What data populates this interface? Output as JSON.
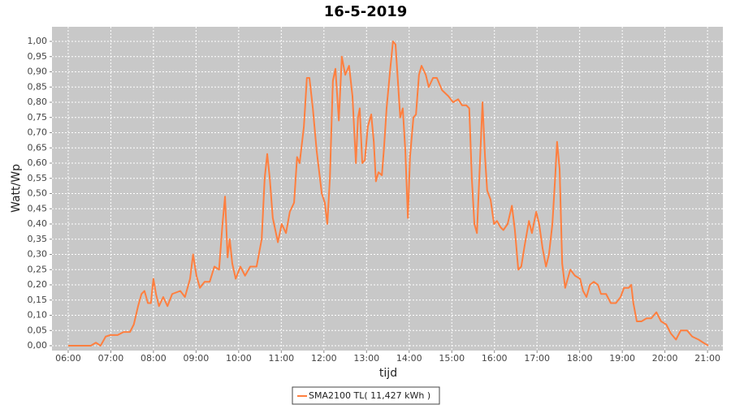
{
  "chart_data": {
    "type": "line",
    "title": "16-5-2019",
    "x_label": "tijd",
    "y_label": "Watt/Wp",
    "x": [
      6.0,
      6.53,
      6.65,
      6.76,
      6.88,
      6.99,
      7.16,
      7.3,
      7.45,
      7.54,
      7.64,
      7.72,
      7.79,
      7.87,
      7.94,
      8.0,
      8.06,
      8.13,
      8.23,
      8.33,
      8.44,
      8.63,
      8.74,
      8.86,
      8.93,
      9.01,
      9.09,
      9.2,
      9.32,
      9.43,
      9.54,
      9.62,
      9.68,
      9.74,
      9.79,
      9.85,
      9.93,
      10.04,
      10.15,
      10.27,
      10.42,
      10.54,
      10.61,
      10.67,
      10.73,
      10.8,
      10.92,
      11.01,
      11.11,
      11.2,
      11.3,
      11.37,
      11.43,
      11.53,
      11.6,
      11.66,
      11.74,
      11.83,
      11.95,
      12.02,
      12.08,
      12.14,
      12.21,
      12.27,
      12.35,
      12.42,
      12.5,
      12.59,
      12.67,
      12.75,
      12.8,
      12.84,
      12.9,
      12.96,
      13.03,
      13.11,
      13.17,
      13.22,
      13.28,
      13.36,
      13.41,
      13.47,
      13.55,
      13.62,
      13.68,
      13.74,
      13.79,
      13.85,
      13.91,
      13.97,
      14.02,
      14.1,
      14.16,
      14.23,
      14.29,
      14.39,
      14.46,
      14.56,
      14.65,
      14.77,
      14.92,
      15.03,
      15.15,
      15.24,
      15.34,
      15.41,
      15.47,
      15.53,
      15.59,
      15.66,
      15.72,
      15.78,
      15.83,
      15.91,
      15.99,
      16.06,
      16.14,
      16.21,
      16.31,
      16.41,
      16.48,
      16.56,
      16.63,
      16.71,
      16.81,
      16.88,
      16.98,
      17.05,
      17.13,
      17.21,
      17.28,
      17.36,
      17.42,
      17.47,
      17.53,
      17.59,
      17.66,
      17.78,
      17.89,
      18.01,
      18.08,
      18.16,
      18.24,
      18.33,
      18.43,
      18.5,
      18.62,
      18.73,
      18.85,
      18.96,
      19.04,
      19.15,
      19.21,
      19.26,
      19.34,
      19.45,
      19.57,
      19.68,
      19.8,
      19.91,
      20.03,
      20.14,
      20.26,
      20.37,
      20.52,
      20.64,
      20.79,
      20.9,
      21.02
    ],
    "series": [
      {
        "name": "SMA2100 TL( 11,427 kWh )",
        "color": "#ff7f3f",
        "values": [
          0,
          0,
          0.01,
          0,
          0.03,
          0.035,
          0.035,
          0.045,
          0.045,
          0.07,
          0.13,
          0.17,
          0.18,
          0.14,
          0.14,
          0.22,
          0.17,
          0.13,
          0.16,
          0.13,
          0.17,
          0.18,
          0.16,
          0.22,
          0.3,
          0.23,
          0.19,
          0.21,
          0.21,
          0.26,
          0.25,
          0.4,
          0.49,
          0.29,
          0.35,
          0.27,
          0.22,
          0.26,
          0.23,
          0.26,
          0.26,
          0.35,
          0.55,
          0.63,
          0.55,
          0.42,
          0.34,
          0.4,
          0.37,
          0.44,
          0.47,
          0.62,
          0.6,
          0.72,
          0.88,
          0.88,
          0.78,
          0.64,
          0.5,
          0.47,
          0.4,
          0.55,
          0.87,
          0.91,
          0.74,
          0.95,
          0.89,
          0.92,
          0.82,
          0.6,
          0.75,
          0.78,
          0.6,
          0.61,
          0.72,
          0.76,
          0.67,
          0.54,
          0.57,
          0.56,
          0.65,
          0.78,
          0.9,
          1.0,
          0.99,
          0.86,
          0.75,
          0.78,
          0.64,
          0.42,
          0.62,
          0.75,
          0.76,
          0.89,
          0.92,
          0.89,
          0.85,
          0.88,
          0.88,
          0.84,
          0.82,
          0.8,
          0.81,
          0.79,
          0.79,
          0.78,
          0.55,
          0.4,
          0.37,
          0.6,
          0.8,
          0.62,
          0.51,
          0.48,
          0.4,
          0.41,
          0.39,
          0.38,
          0.4,
          0.46,
          0.38,
          0.25,
          0.26,
          0.33,
          0.41,
          0.37,
          0.44,
          0.4,
          0.32,
          0.26,
          0.3,
          0.4,
          0.54,
          0.67,
          0.58,
          0.27,
          0.19,
          0.25,
          0.23,
          0.22,
          0.18,
          0.16,
          0.2,
          0.21,
          0.2,
          0.17,
          0.17,
          0.14,
          0.14,
          0.16,
          0.19,
          0.19,
          0.2,
          0.14,
          0.08,
          0.08,
          0.09,
          0.09,
          0.11,
          0.08,
          0.07,
          0.04,
          0.02,
          0.05,
          0.05,
          0.03,
          0.02,
          0.01,
          0
        ]
      }
    ],
    "xlim": [
      5.62,
      21.36
    ],
    "xticks": [
      {
        "value": 6,
        "label": "06:00"
      },
      {
        "value": 7,
        "label": "07:00"
      },
      {
        "value": 8,
        "label": "08:00"
      },
      {
        "value": 9,
        "label": "09:00"
      },
      {
        "value": 10,
        "label": "10:00"
      },
      {
        "value": 11,
        "label": "11:00"
      },
      {
        "value": 12,
        "label": "12:00"
      },
      {
        "value": 13,
        "label": "13:00"
      },
      {
        "value": 14,
        "label": "14:00"
      },
      {
        "value": 15,
        "label": "15:00"
      },
      {
        "value": 16,
        "label": "16:00"
      },
      {
        "value": 17,
        "label": "17:00"
      },
      {
        "value": 18,
        "label": "18:00"
      },
      {
        "value": 19,
        "label": "19:00"
      },
      {
        "value": 20,
        "label": "20:00"
      },
      {
        "value": 21,
        "label": "21:00"
      }
    ],
    "ylim": [
      -0.016,
      1.048
    ],
    "yticks": [
      {
        "value": 0,
        "label": "0,00"
      },
      {
        "value": 0.05,
        "label": "0,05"
      },
      {
        "value": 0.1,
        "label": "0,10"
      },
      {
        "value": 0.15,
        "label": "0,15"
      },
      {
        "value": 0.2,
        "label": "0,20"
      },
      {
        "value": 0.25,
        "label": "0,25"
      },
      {
        "value": 0.3,
        "label": "0,30"
      },
      {
        "value": 0.35,
        "label": "0,35"
      },
      {
        "value": 0.4,
        "label": "0,40"
      },
      {
        "value": 0.45,
        "label": "0,45"
      },
      {
        "value": 0.5,
        "label": "0,50"
      },
      {
        "value": 0.55,
        "label": "0,55"
      },
      {
        "value": 0.6,
        "label": "0,60"
      },
      {
        "value": 0.65,
        "label": "0,65"
      },
      {
        "value": 0.7,
        "label": "0,70"
      },
      {
        "value": 0.75,
        "label": "0,75"
      },
      {
        "value": 0.8,
        "label": "0,80"
      },
      {
        "value": 0.85,
        "label": "0,85"
      },
      {
        "value": 0.9,
        "label": "0,90"
      },
      {
        "value": 0.95,
        "label": "0,95"
      },
      {
        "value": 1.0,
        "label": "1,00"
      }
    ],
    "grid": true
  }
}
